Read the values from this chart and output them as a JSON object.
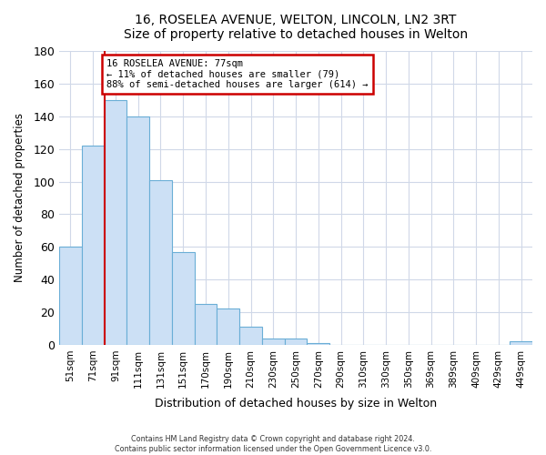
{
  "title": "16, ROSELEA AVENUE, WELTON, LINCOLN, LN2 3RT",
  "subtitle": "Size of property relative to detached houses in Welton",
  "xlabel": "Distribution of detached houses by size in Welton",
  "ylabel": "Number of detached properties",
  "bar_labels": [
    "51sqm",
    "71sqm",
    "91sqm",
    "111sqm",
    "131sqm",
    "151sqm",
    "170sqm",
    "190sqm",
    "210sqm",
    "230sqm",
    "250sqm",
    "270sqm",
    "290sqm",
    "310sqm",
    "330sqm",
    "350sqm",
    "369sqm",
    "389sqm",
    "409sqm",
    "429sqm",
    "449sqm"
  ],
  "bar_heights": [
    60,
    122,
    150,
    140,
    101,
    57,
    25,
    22,
    11,
    4,
    4,
    1,
    0,
    0,
    0,
    0,
    0,
    0,
    0,
    0,
    2
  ],
  "bar_color": "#cce0f5",
  "bar_edge_color": "#6aaed6",
  "red_line_x": 1.5,
  "annotation_title": "16 ROSELEA AVENUE: 77sqm",
  "annotation_line1": "← 11% of detached houses are smaller (79)",
  "annotation_line2": "88% of semi-detached houses are larger (614) →",
  "annotation_box_color": "#ffffff",
  "annotation_box_edge": "#cc0000",
  "red_line_color": "#cc0000",
  "ylim": [
    0,
    180
  ],
  "yticks": [
    0,
    20,
    40,
    60,
    80,
    100,
    120,
    140,
    160,
    180
  ],
  "footer1": "Contains HM Land Registry data © Crown copyright and database right 2024.",
  "footer2": "Contains public sector information licensed under the Open Government Licence v3.0.",
  "bg_color": "#ffffff",
  "plot_bg_color": "#ffffff",
  "grid_color": "#d0d8e8"
}
